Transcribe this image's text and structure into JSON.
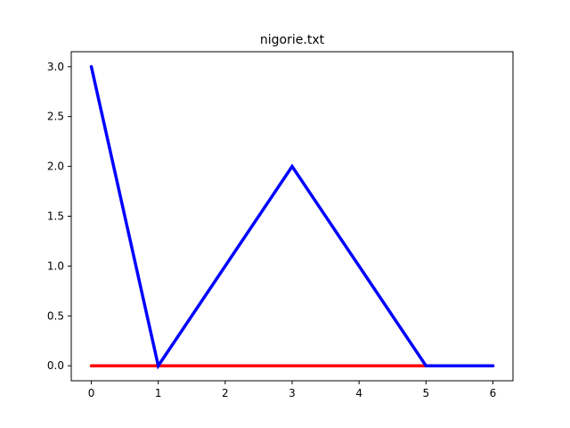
{
  "chart_data": {
    "type": "line",
    "title": "nigorie.txt",
    "xlabel": "",
    "ylabel": "",
    "xlim": [
      -0.3,
      6.3
    ],
    "ylim": [
      -0.15,
      3.15
    ],
    "xticks": [
      0,
      1,
      2,
      3,
      4,
      5,
      6
    ],
    "xtick_labels": [
      "0",
      "1",
      "2",
      "3",
      "4",
      "5",
      "6"
    ],
    "yticks": [
      0,
      0.5,
      1,
      1.5,
      2,
      2.5,
      3
    ],
    "ytick_labels": [
      "0.0",
      "0.5",
      "1.0",
      "1.5",
      "2.0",
      "2.5",
      "3.0"
    ],
    "grid": false,
    "series": [
      {
        "color": "#ff0000",
        "x": [
          0,
          1,
          2,
          3,
          4,
          5,
          6
        ],
        "y": [
          0,
          0,
          0,
          0,
          0,
          0,
          0
        ]
      },
      {
        "color": "#0000ff",
        "x": [
          0,
          1,
          2,
          3,
          4,
          5,
          6
        ],
        "y": [
          3,
          0,
          1,
          2,
          1,
          0,
          0
        ]
      }
    ]
  }
}
